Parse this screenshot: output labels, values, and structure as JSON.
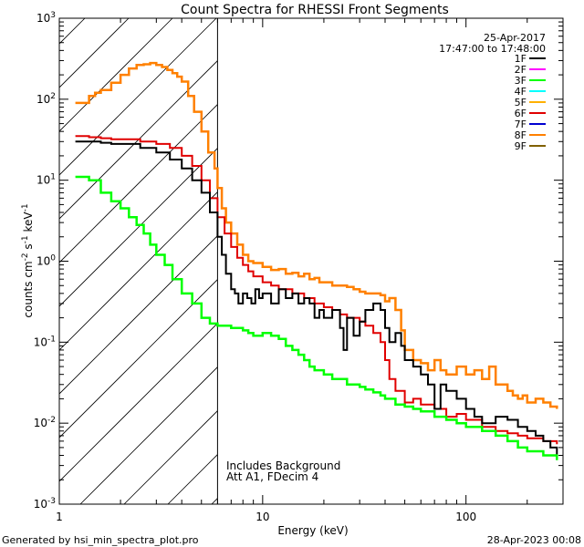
{
  "chart_data": {
    "type": "line",
    "title": "Count Spectra for RHESSI Front Segments",
    "xlabel": "Energy (keV)",
    "ylabel": {
      "base": "counts cm",
      "exp1": "-2",
      "mid1": " s",
      "exp2": "-1",
      "mid2": " keV",
      "exp3": "-1"
    },
    "xscale": "log",
    "yscale": "log",
    "xlim": [
      1,
      300
    ],
    "ylim": [
      0.001,
      1000
    ],
    "x_ticks": [
      {
        "value": 1,
        "label": "1"
      },
      {
        "value": 10,
        "label": "10"
      },
      {
        "value": 100,
        "label": "100"
      }
    ],
    "y_ticks": [
      {
        "value": 0.001,
        "base": "10",
        "exp": "-3"
      },
      {
        "value": 0.01,
        "base": "10",
        "exp": "-2"
      },
      {
        "value": 0.1,
        "base": "10",
        "exp": "-1"
      },
      {
        "value": 1,
        "base": "10",
        "exp": "0"
      },
      {
        "value": 10,
        "base": "10",
        "exp": "1"
      },
      {
        "value": 100,
        "base": "10",
        "exp": "2"
      },
      {
        "value": 1000,
        "base": "10",
        "exp": "3"
      }
    ],
    "date": "25-Apr-2017",
    "time_range": "17:47:00 to 17:48:00",
    "legend_position": "top-right",
    "legend": [
      {
        "name": "1F",
        "color": "#000000"
      },
      {
        "name": "2F",
        "color": "#ff00ff"
      },
      {
        "name": "3F",
        "color": "#00ff00"
      },
      {
        "name": "4F",
        "color": "#00ffff"
      },
      {
        "name": "5F",
        "color": "#ffb000"
      },
      {
        "name": "6F",
        "color": "#e00000"
      },
      {
        "name": "7F",
        "color": "#0000d0"
      },
      {
        "name": "8F",
        "color": "#ff8000"
      },
      {
        "name": "9F",
        "color": "#806000"
      }
    ],
    "shaded_region": {
      "x_range": [
        1,
        6
      ],
      "pattern": "diagonal-hatch"
    },
    "attenuator_line": 6,
    "annotations": [
      "Includes Background",
      "Att A1, FDecim 4"
    ],
    "series": [
      {
        "name": "8F",
        "color": "#ff8000",
        "width": 2.5,
        "x": [
          1.2,
          1.3,
          1.4,
          1.5,
          1.6,
          1.8,
          2.0,
          2.2,
          2.4,
          2.6,
          2.8,
          3.0,
          3.2,
          3.4,
          3.6,
          3.8,
          4.0,
          4.3,
          4.6,
          5.0,
          5.4,
          5.8,
          6.0,
          6.3,
          6.6,
          7.0,
          7.5,
          8.0,
          8.5,
          9,
          10,
          11,
          12,
          13,
          14,
          15,
          16,
          17,
          18,
          19,
          20,
          22,
          24,
          26,
          28,
          30,
          32,
          35,
          38,
          40,
          42,
          45,
          48,
          50,
          55,
          60,
          65,
          70,
          75,
          80,
          90,
          100,
          110,
          120,
          130,
          140,
          150,
          160,
          170,
          180,
          190,
          200,
          220,
          240,
          260,
          280
        ],
        "y": [
          90,
          90,
          110,
          120,
          130,
          160,
          200,
          240,
          265,
          270,
          280,
          265,
          250,
          230,
          210,
          190,
          165,
          110,
          70,
          40,
          22,
          14,
          8,
          4.5,
          3.0,
          2.2,
          1.6,
          1.2,
          1.0,
          0.95,
          0.85,
          0.78,
          0.8,
          0.7,
          0.72,
          0.65,
          0.7,
          0.6,
          0.62,
          0.55,
          0.55,
          0.5,
          0.5,
          0.48,
          0.45,
          0.42,
          0.4,
          0.4,
          0.38,
          0.32,
          0.35,
          0.25,
          0.14,
          0.08,
          0.06,
          0.055,
          0.045,
          0.06,
          0.045,
          0.04,
          0.05,
          0.04,
          0.045,
          0.035,
          0.05,
          0.03,
          0.03,
          0.025,
          0.022,
          0.02,
          0.022,
          0.018,
          0.02,
          0.018,
          0.016,
          0.015
        ]
      },
      {
        "name": "6F",
        "color": "#e00000",
        "width": 2,
        "x": [
          1.2,
          1.4,
          1.6,
          1.8,
          2.0,
          2.5,
          3.0,
          3.5,
          4.0,
          4.5,
          5.0,
          5.5,
          6.0,
          6.5,
          7.0,
          7.5,
          8.0,
          8.5,
          9,
          10,
          11,
          12,
          14,
          16,
          18,
          20,
          22,
          24,
          26,
          28,
          30,
          32,
          35,
          38,
          40,
          42,
          45,
          50,
          55,
          60,
          70,
          80,
          90,
          100,
          120,
          140,
          160,
          180,
          200,
          240,
          280
        ],
        "y": [
          35,
          34,
          33,
          32,
          32,
          30,
          28,
          25,
          20,
          15,
          10,
          6,
          3.5,
          2.2,
          1.5,
          1.1,
          0.9,
          0.75,
          0.65,
          0.55,
          0.5,
          0.45,
          0.4,
          0.35,
          0.3,
          0.27,
          0.25,
          0.22,
          0.2,
          0.2,
          0.18,
          0.16,
          0.13,
          0.1,
          0.06,
          0.035,
          0.025,
          0.018,
          0.02,
          0.017,
          0.015,
          0.012,
          0.013,
          0.011,
          0.009,
          0.008,
          0.0075,
          0.007,
          0.0065,
          0.006,
          0.0055
        ]
      },
      {
        "name": "1F",
        "color": "#000000",
        "width": 2,
        "x": [
          1.2,
          1.4,
          1.6,
          1.8,
          2.0,
          2.5,
          3.0,
          3.5,
          4.0,
          4.5,
          5.0,
          5.5,
          6.0,
          6.3,
          6.6,
          7.0,
          7.3,
          7.6,
          8.0,
          8.4,
          8.8,
          9.2,
          9.6,
          10,
          11,
          12,
          13,
          14,
          15,
          16,
          17,
          18,
          19,
          20,
          22,
          24,
          25,
          26,
          28,
          30,
          32,
          35,
          38,
          40,
          42,
          45,
          48,
          50,
          55,
          60,
          65,
          70,
          75,
          80,
          90,
          100,
          110,
          120,
          140,
          160,
          180,
          200,
          220,
          240,
          260,
          280
        ],
        "y": [
          30,
          30,
          29,
          28,
          28,
          25,
          22,
          18,
          14,
          10,
          7,
          4,
          2.0,
          1.2,
          0.7,
          0.45,
          0.4,
          0.3,
          0.4,
          0.35,
          0.3,
          0.45,
          0.35,
          0.4,
          0.3,
          0.45,
          0.35,
          0.4,
          0.3,
          0.35,
          0.3,
          0.2,
          0.25,
          0.2,
          0.25,
          0.15,
          0.08,
          0.2,
          0.12,
          0.18,
          0.25,
          0.3,
          0.25,
          0.15,
          0.1,
          0.13,
          0.09,
          0.06,
          0.05,
          0.04,
          0.03,
          0.015,
          0.03,
          0.025,
          0.02,
          0.015,
          0.012,
          0.01,
          0.012,
          0.011,
          0.009,
          0.008,
          0.007,
          0.006,
          0.005,
          0.004
        ]
      },
      {
        "name": "3F",
        "color": "#00ff00",
        "width": 2.5,
        "x": [
          1.2,
          1.4,
          1.6,
          1.8,
          2.0,
          2.2,
          2.4,
          2.6,
          2.8,
          3.0,
          3.3,
          3.6,
          4.0,
          4.5,
          5.0,
          5.5,
          6.0,
          6.5,
          7.0,
          7.5,
          8.0,
          8.5,
          9,
          10,
          11,
          12,
          13,
          14,
          15,
          16,
          17,
          18,
          20,
          22,
          24,
          26,
          28,
          30,
          32,
          35,
          38,
          40,
          45,
          50,
          55,
          60,
          70,
          80,
          90,
          100,
          120,
          140,
          160,
          180,
          200,
          240,
          280
        ],
        "y": [
          11,
          10,
          7,
          5.5,
          4.5,
          3.5,
          2.8,
          2.2,
          1.6,
          1.2,
          0.9,
          0.6,
          0.4,
          0.3,
          0.2,
          0.17,
          0.16,
          0.16,
          0.15,
          0.15,
          0.14,
          0.13,
          0.12,
          0.13,
          0.12,
          0.11,
          0.09,
          0.08,
          0.07,
          0.06,
          0.05,
          0.045,
          0.04,
          0.035,
          0.035,
          0.03,
          0.03,
          0.028,
          0.026,
          0.024,
          0.022,
          0.02,
          0.017,
          0.016,
          0.015,
          0.014,
          0.012,
          0.011,
          0.01,
          0.009,
          0.008,
          0.007,
          0.006,
          0.005,
          0.0045,
          0.004,
          0.0035
        ]
      }
    ]
  },
  "footer": {
    "left": "Generated by hsi_min_spectra_plot.pro",
    "right": "28-Apr-2023 00:08"
  }
}
